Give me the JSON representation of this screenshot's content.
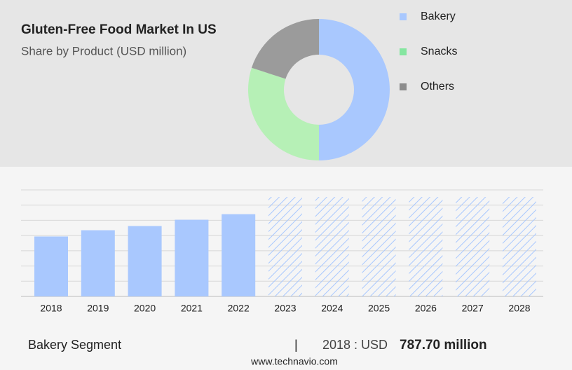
{
  "header": {
    "title": "Gluten-Free Food Market In US",
    "subtitle": "Share by Product (USD million)"
  },
  "chart_data": [
    {
      "type": "donut",
      "categories": [
        "Bakery",
        "Snacks",
        "Others"
      ],
      "values": [
        50,
        30,
        20
      ],
      "colors": [
        "#a9c8fe",
        "#b6f0b6",
        "#9b9b9b"
      ],
      "legend_colors": [
        "#a9c8fe",
        "#85e6a0",
        "#8c8c8c"
      ]
    },
    {
      "type": "bar",
      "categories": [
        "2018",
        "2019",
        "2020",
        "2021",
        "2022",
        "2023",
        "2024",
        "2025",
        "2026",
        "2027",
        "2028"
      ],
      "values": [
        787.7,
        870,
        925,
        1008,
        1081,
        null,
        null,
        null,
        null,
        null,
        null
      ],
      "color": "#a9c8fe",
      "ylim": [
        0,
        1400
      ],
      "yticks": [
        0,
        200,
        400,
        600,
        800,
        1000,
        1200,
        1400
      ],
      "grid": true
    }
  ],
  "footer": {
    "segment": "Bakery Segment",
    "separator": "|",
    "year_label": "2018 : USD",
    "value": "787.70 million",
    "source": "www.technavio.com"
  }
}
